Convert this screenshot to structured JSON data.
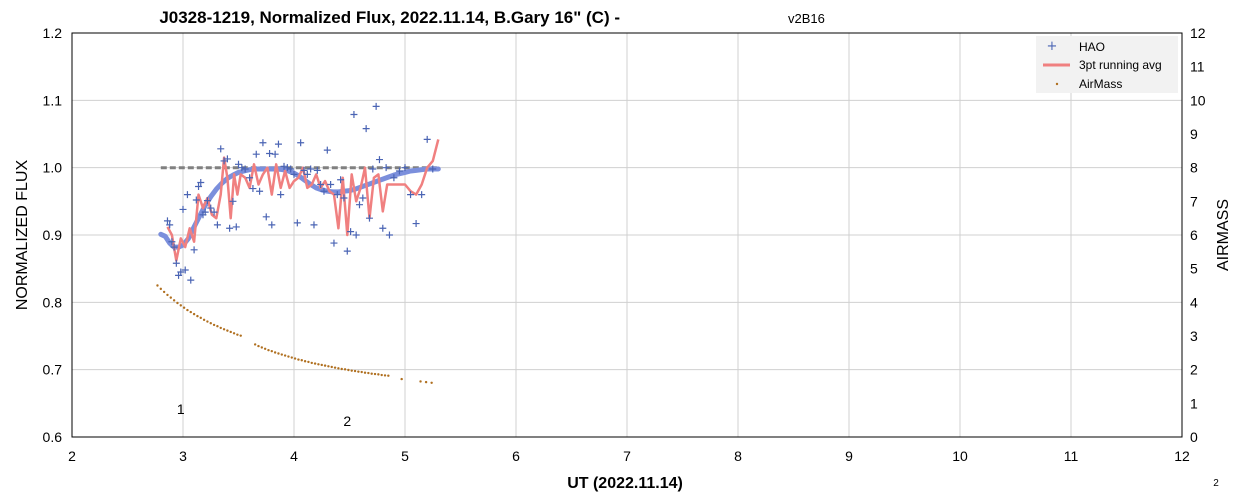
{
  "chart_data": {
    "type": "scatter",
    "title": "J0328-1219, Normalized Flux, 2022.11.14, B.Gary 16\" (C) -",
    "title_suffix": "v2B16",
    "xlabel": "UT (2022.11.14)",
    "ylabel": "NORMALIZED FLUX",
    "y2label": "AIRMASS",
    "xlim": [
      2,
      12
    ],
    "ylim": [
      0.6,
      1.2
    ],
    "y2lim": [
      0,
      12
    ],
    "xticks": [
      "2",
      "3",
      "4",
      "5",
      "6",
      "7",
      "8",
      "9",
      "10",
      "11",
      "12"
    ],
    "yticks": [
      "0.6",
      "0.7",
      "0.8",
      "0.9",
      "1.0",
      "1.1",
      "1.2"
    ],
    "y2ticks": [
      "0",
      "1",
      "2",
      "3",
      "4",
      "5",
      "6",
      "7",
      "8",
      "9",
      "10",
      "11",
      "12"
    ],
    "grid": true,
    "legend_position": "top-right",
    "legend": [
      "HAO",
      "3pt running avg",
      "AirMass"
    ],
    "colors": {
      "hao": "#4a64b4",
      "running_avg": "#f08080",
      "airmass": "#b07020",
      "model": "#7b8fdc",
      "reference": "#808080",
      "grid": "#d0d0d0"
    },
    "series": [
      {
        "name": "HAO",
        "x": [
          2.86,
          2.88,
          2.9,
          2.92,
          2.94,
          2.96,
          2.98,
          3.0,
          3.02,
          3.04,
          3.07,
          3.1,
          3.12,
          3.14,
          3.16,
          3.18,
          3.2,
          3.22,
          3.25,
          3.28,
          3.31,
          3.34,
          3.37,
          3.4,
          3.42,
          3.45,
          3.48,
          3.5,
          3.53,
          3.56,
          3.6,
          3.63,
          3.66,
          3.69,
          3.72,
          3.75,
          3.78,
          3.8,
          3.83,
          3.86,
          3.88,
          3.91,
          3.94,
          3.97,
          4.0,
          4.03,
          4.06,
          4.09,
          4.12,
          4.15,
          4.18,
          4.21,
          4.24,
          4.27,
          4.3,
          4.33,
          4.36,
          4.39,
          4.42,
          4.45,
          4.48,
          4.51,
          4.54,
          4.56,
          4.59,
          4.62,
          4.65,
          4.68,
          4.71,
          4.74,
          4.77,
          4.8,
          4.83,
          4.86,
          4.9,
          4.95,
          5.0,
          5.05,
          5.1,
          5.15,
          5.2,
          5.25
        ],
        "y": [
          0.921,
          0.915,
          0.89,
          0.882,
          0.858,
          0.84,
          0.845,
          0.938,
          0.848,
          0.96,
          0.833,
          0.878,
          0.952,
          0.972,
          0.978,
          0.93,
          0.934,
          0.951,
          0.94,
          0.934,
          0.915,
          1.028,
          1.01,
          1.013,
          0.91,
          0.95,
          0.912,
          1.005,
          1.0,
          0.998,
          0.985,
          0.969,
          1.02,
          0.965,
          1.037,
          0.927,
          1.021,
          0.915,
          1.02,
          1.035,
          0.96,
          1.002,
          1.0,
          0.998,
          0.99,
          0.918,
          1.037,
          0.996,
          0.99,
          0.998,
          0.915,
          0.996,
          0.975,
          0.965,
          1.026,
          0.975,
          0.888,
          0.96,
          0.982,
          0.955,
          0.876,
          0.905,
          1.079,
          0.9,
          0.945,
          0.955,
          1.058,
          0.925,
          0.998,
          1.091,
          1.012,
          0.91,
          1.0,
          0.9,
          0.985,
          0.995,
          1.0,
          0.96,
          0.917,
          0.96,
          1.042,
          0.998
        ]
      },
      {
        "name": "3pt running avg",
        "x": [
          2.86,
          2.9,
          2.94,
          2.98,
          3.02,
          3.06,
          3.1,
          3.14,
          3.18,
          3.22,
          3.26,
          3.3,
          3.34,
          3.37,
          3.4,
          3.43,
          3.46,
          3.49,
          3.52,
          3.56,
          3.6,
          3.64,
          3.68,
          3.72,
          3.76,
          3.8,
          3.84,
          3.88,
          3.92,
          3.96,
          4.0,
          4.04,
          4.08,
          4.12,
          4.16,
          4.2,
          4.24,
          4.28,
          4.32,
          4.36,
          4.4,
          4.44,
          4.48,
          4.52,
          4.56,
          4.6,
          4.64,
          4.68,
          4.72,
          4.76,
          4.8,
          4.84,
          4.9,
          5.0,
          5.05,
          5.1,
          5.15,
          5.2,
          5.25,
          5.3
        ],
        "y": [
          0.912,
          0.9,
          0.862,
          0.895,
          0.882,
          0.91,
          0.89,
          0.96,
          0.94,
          0.955,
          0.93,
          0.925,
          0.96,
          1.015,
          0.985,
          0.925,
          0.99,
          0.96,
          0.99,
          0.985,
          0.97,
          1.005,
          0.975,
          0.99,
          1.0,
          0.96,
          1.005,
          0.97,
          0.995,
          0.97,
          0.98,
          0.985,
          1.0,
          0.97,
          0.975,
          0.99,
          0.97,
          0.98,
          0.965,
          0.96,
          0.91,
          0.985,
          0.9,
          0.99,
          0.95,
          0.97,
          1.0,
          0.925,
          0.985,
          0.99,
          0.935,
          0.975,
          0.975,
          0.975,
          0.965,
          0.96,
          0.975,
          1.0,
          1.01,
          1.042
        ]
      },
      {
        "name": "AirMass",
        "x": [
          2.77,
          2.8,
          2.83,
          2.86,
          2.89,
          2.92,
          2.95,
          2.98,
          3.01,
          3.04,
          3.07,
          3.1,
          3.13,
          3.16,
          3.19,
          3.22,
          3.25,
          3.28,
          3.31,
          3.34,
          3.37,
          3.4,
          3.43,
          3.46,
          3.49,
          3.52,
          3.65,
          3.68,
          3.71,
          3.74,
          3.77,
          3.8,
          3.83,
          3.86,
          3.89,
          3.92,
          3.95,
          3.98,
          4.01,
          4.04,
          4.07,
          4.1,
          4.13,
          4.16,
          4.19,
          4.22,
          4.25,
          4.28,
          4.31,
          4.34,
          4.37,
          4.4,
          4.43,
          4.46,
          4.49,
          4.52,
          4.55,
          4.58,
          4.61,
          4.64,
          4.67,
          4.7,
          4.73,
          4.76,
          4.79,
          4.82,
          4.85,
          4.97,
          5.14,
          5.19,
          5.24
        ],
        "y": [
          4.5,
          4.4,
          4.31,
          4.22,
          4.14,
          4.06,
          3.98,
          3.91,
          3.84,
          3.77,
          3.71,
          3.65,
          3.59,
          3.54,
          3.48,
          3.43,
          3.38,
          3.33,
          3.29,
          3.24,
          3.2,
          3.16,
          3.12,
          3.08,
          3.04,
          3.01,
          2.75,
          2.7,
          2.66,
          2.62,
          2.58,
          2.55,
          2.51,
          2.48,
          2.45,
          2.42,
          2.39,
          2.36,
          2.33,
          2.3,
          2.28,
          2.25,
          2.23,
          2.2,
          2.18,
          2.16,
          2.14,
          2.12,
          2.1,
          2.08,
          2.06,
          2.04,
          2.02,
          2.01,
          1.99,
          1.97,
          1.96,
          1.94,
          1.93,
          1.91,
          1.9,
          1.88,
          1.87,
          1.86,
          1.84,
          1.83,
          1.82,
          1.72,
          1.65,
          1.63,
          1.61
        ]
      },
      {
        "x": [
          2.8,
          2.84,
          2.88,
          2.92,
          2.96,
          3.0,
          3.05,
          3.1,
          3.15,
          3.2,
          3.25,
          3.3,
          3.35,
          3.4,
          3.45,
          3.5,
          3.55,
          3.6,
          3.65,
          3.7,
          3.75,
          3.8,
          3.85,
          3.9,
          3.95,
          4.0,
          4.05,
          4.1,
          4.15,
          4.2,
          4.25,
          4.3,
          4.35,
          4.4,
          4.45,
          4.5,
          4.55,
          4.6,
          4.65,
          4.7,
          4.75,
          4.8,
          4.85,
          4.9,
          4.95,
          5.0,
          5.05,
          5.1,
          5.15,
          5.2,
          5.25,
          5.3
        ],
        "y": [
          0.901,
          0.898,
          0.888,
          0.882,
          0.882,
          0.885,
          0.895,
          0.912,
          0.928,
          0.944,
          0.957,
          0.968,
          0.977,
          0.984,
          0.989,
          0.993,
          0.995,
          0.997,
          0.998,
          0.998,
          0.998,
          0.998,
          0.998,
          0.997,
          0.995,
          0.992,
          0.987,
          0.981,
          0.975,
          0.97,
          0.967,
          0.965,
          0.964,
          0.964,
          0.965,
          0.966,
          0.968,
          0.971,
          0.974,
          0.977,
          0.98,
          0.983,
          0.986,
          0.989,
          0.991,
          0.993,
          0.995,
          0.996,
          0.997,
          0.998,
          0.998,
          0.998
        ]
      },
      {
        "x": [
          2.8,
          5.3
        ],
        "y": [
          1.0,
          1.0
        ]
      }
    ],
    "annotations": [
      {
        "text": "1",
        "x": 2.98
      },
      {
        "text": "2",
        "x": 4.48
      }
    ],
    "corner_label": "2"
  }
}
